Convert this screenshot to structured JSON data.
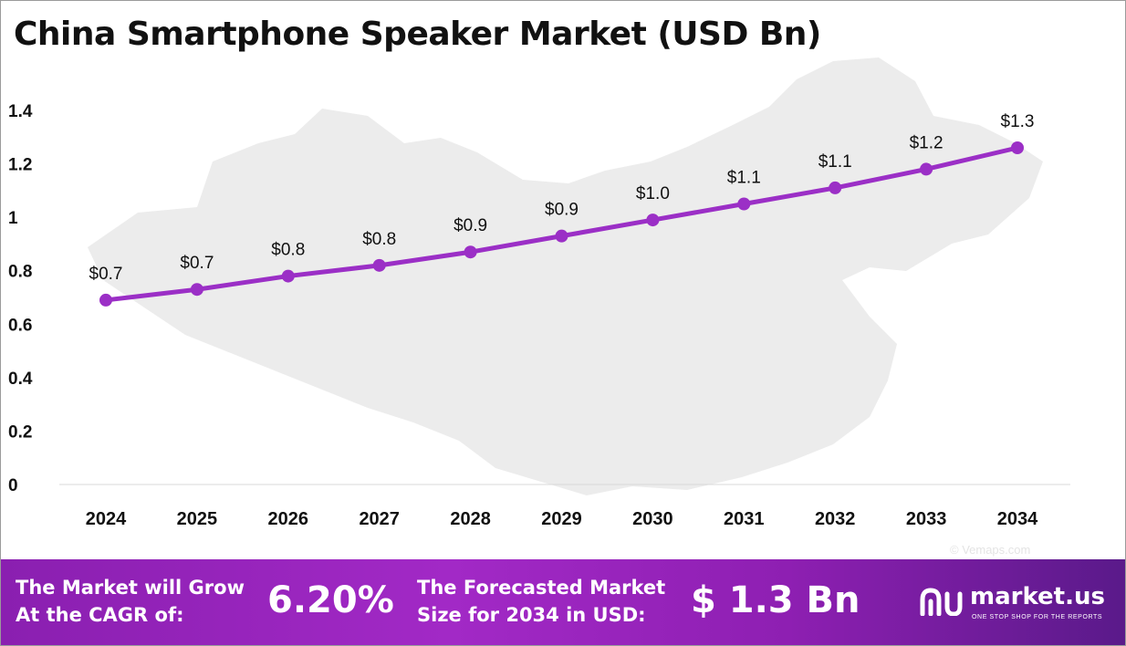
{
  "title": "China Smartphone Speaker Market (USD Bn)",
  "chart_data": {
    "type": "line",
    "title": "China Smartphone Speaker Market (USD Bn)",
    "xlabel": "",
    "ylabel": "",
    "ylim": [
      0,
      1.4
    ],
    "yticks": [
      "0",
      "0.2",
      "0.4",
      "0.6",
      "0.8",
      "1",
      "1.2",
      "1.4"
    ],
    "categories": [
      "2024",
      "2025",
      "2026",
      "2027",
      "2028",
      "2029",
      "2030",
      "2031",
      "2032",
      "2033",
      "2034"
    ],
    "series": [
      {
        "values": [
          0.69,
          0.73,
          0.78,
          0.82,
          0.87,
          0.93,
          0.99,
          1.05,
          1.11,
          1.18,
          1.26
        ],
        "labels": [
          "$0.7",
          "$0.7",
          "$0.8",
          "$0.8",
          "$0.9",
          "$0.9",
          "$1.0",
          "$1.1",
          "$1.1",
          "$1.2",
          "$1.3"
        ],
        "color": "#9b2fc6"
      }
    ],
    "grid": false,
    "legend": "none"
  },
  "watermark": "© Vemaps.com",
  "footer": {
    "cagr_label_line1": "The Market will Grow",
    "cagr_label_line2": "At the CAGR of:",
    "cagr_value": "6.20%",
    "forecast_label_line1": "The Forecasted Market",
    "forecast_label_line2": "Size for 2034 in USD:",
    "forecast_value": "$ 1.3 Bn",
    "brand_name": "market.us",
    "brand_tagline": "ONE STOP SHOP FOR THE REPORTS"
  },
  "colors": {
    "line": "#9b2fc6",
    "footer_start": "#8a1fb0",
    "footer_end": "#5a1a8a"
  }
}
